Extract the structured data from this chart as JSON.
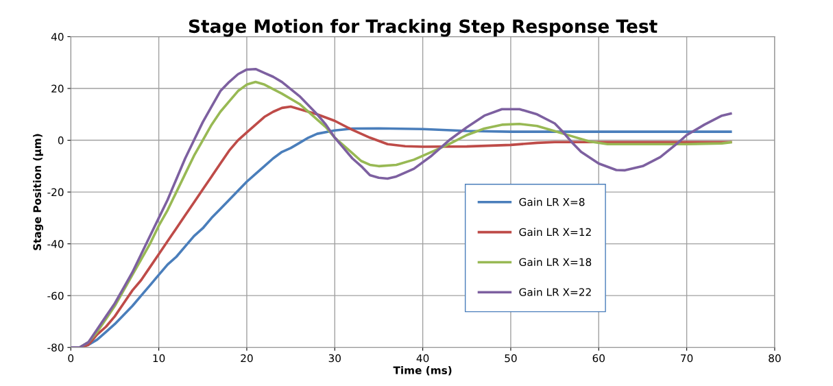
{
  "chart_data": {
    "type": "line",
    "title": "Stage Motion for Tracking Step Response Test",
    "xlabel": "Time (ms)",
    "ylabel": "Stage Position (µm)",
    "xlim": [
      0,
      80
    ],
    "xticks": [
      0,
      10,
      20,
      30,
      40,
      50,
      60,
      70,
      80
    ],
    "ylim": [
      -80,
      40
    ],
    "yticks": [
      -80,
      -60,
      -40,
      -20,
      0,
      20,
      40
    ],
    "grid": true,
    "legend": "bottom right",
    "marker": "none",
    "line_style": "solid",
    "series": [
      {
        "name": "Gain LR X=8",
        "color": "#4a7ebb",
        "x": [
          0,
          1,
          2,
          3,
          4,
          5,
          6,
          7,
          8,
          9,
          10,
          11,
          12,
          13,
          14,
          15,
          16,
          17,
          18,
          19,
          20,
          21,
          22,
          23,
          24,
          25,
          26,
          27,
          28,
          30,
          32,
          35,
          40,
          45,
          50,
          60,
          75
        ],
        "values": [
          -80,
          -80,
          -79,
          -77,
          -74,
          -71,
          -67.5,
          -64,
          -60,
          -56,
          -52,
          -48,
          -45,
          -41,
          -37,
          -34,
          -30,
          -26.5,
          -23,
          -19.5,
          -16,
          -13,
          -10,
          -7,
          -4.5,
          -3,
          -1,
          1,
          2.5,
          3.8,
          4.5,
          4.6,
          4.3,
          3.6,
          3.3,
          3.3,
          3.3
        ]
      },
      {
        "name": "Gain LR X=12",
        "color": "#be4b48",
        "x": [
          0,
          1,
          2,
          3,
          4,
          5,
          6,
          7,
          8,
          9,
          10,
          11,
          12,
          13,
          14,
          15,
          16,
          17,
          18,
          19,
          20,
          21,
          22,
          23,
          24,
          25,
          26,
          28,
          30,
          32,
          34,
          36,
          38,
          40,
          45,
          50,
          53,
          55,
          60,
          75
        ],
        "values": [
          -80,
          -80,
          -79,
          -75,
          -72,
          -68,
          -63,
          -58,
          -54,
          -49,
          -44,
          -39,
          -34,
          -29,
          -24,
          -19,
          -14,
          -9,
          -4,
          0,
          3,
          6,
          9,
          11,
          12.5,
          13,
          12,
          10,
          7.5,
          4,
          1,
          -1.5,
          -2.3,
          -2.5,
          -2.4,
          -1.8,
          -1,
          -0.7,
          -0.7,
          -0.7
        ]
      },
      {
        "name": "Gain LR X=18",
        "color": "#98b954",
        "x": [
          0,
          1,
          2,
          3,
          4,
          5,
          6,
          7,
          8,
          9,
          10,
          11,
          12,
          13,
          14,
          15,
          16,
          17,
          18,
          19,
          20,
          21,
          22,
          24,
          26,
          28,
          29,
          30,
          31,
          32,
          33,
          34,
          35,
          37,
          39,
          41,
          43,
          45,
          47,
          49,
          51,
          53,
          55,
          57,
          59,
          61,
          65,
          70,
          74,
          75
        ],
        "values": [
          -80,
          -80,
          -78,
          -74,
          -69,
          -64,
          -58,
          -52,
          -46,
          -40,
          -33,
          -27,
          -20,
          -13,
          -6,
          0,
          6,
          11,
          15,
          19,
          21.5,
          22.5,
          21.5,
          18,
          14,
          8,
          5,
          1,
          -2,
          -5,
          -8,
          -9.5,
          -10,
          -9.5,
          -7.5,
          -4.5,
          -1.5,
          2,
          4.5,
          6,
          6.3,
          5.5,
          3.5,
          1.5,
          -0.5,
          -1.5,
          -1.5,
          -1.5,
          -1.2,
          -0.8
        ]
      },
      {
        "name": "Gain LR X=22",
        "color": "#7d60a0",
        "x": [
          0,
          1,
          2,
          3,
          4,
          5,
          6,
          7,
          8,
          9,
          10,
          11,
          12,
          13,
          14,
          15,
          16,
          17,
          18,
          19,
          20,
          21,
          22,
          23,
          24,
          26,
          28,
          29,
          30,
          31,
          32,
          33,
          34,
          35,
          36,
          37,
          39,
          41,
          43,
          45,
          47,
          49,
          51,
          53,
          55,
          56,
          57,
          58,
          60,
          62,
          63,
          65,
          67,
          69,
          70,
          72,
          74,
          75
        ],
        "values": [
          -80,
          -80,
          -78,
          -73,
          -68,
          -63,
          -57,
          -51,
          -44,
          -37,
          -30,
          -23,
          -15,
          -7,
          0,
          7,
          13,
          19,
          22.5,
          25.5,
          27.3,
          27.5,
          26,
          24.5,
          22.5,
          17,
          10,
          6,
          1,
          -3,
          -7,
          -10,
          -13.5,
          -14.5,
          -14.8,
          -14,
          -11,
          -6,
          0,
          5,
          9.5,
          12,
          12,
          10,
          6.5,
          3,
          -1,
          -4.5,
          -9,
          -11.5,
          -11.6,
          -10,
          -6.5,
          -1,
          2,
          6,
          9.5,
          10.3
        ]
      }
    ]
  }
}
